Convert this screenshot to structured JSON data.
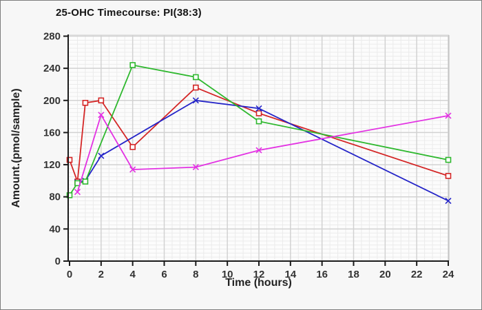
{
  "window": {
    "background": "#f7f7f7",
    "plot_background": "#fcfcfc",
    "border_color": "#7d7d7d"
  },
  "chart_data": {
    "type": "line",
    "title": "25-OHC Timecourse: PI(38:3)",
    "xlabel": "Time (hours)",
    "ylabel": "Amount.(pmol/sample)",
    "xlim": [
      0,
      24
    ],
    "ylim": [
      0,
      280
    ],
    "x_ticks": [
      0,
      2,
      4,
      6,
      8,
      10,
      12,
      14,
      16,
      18,
      20,
      22,
      24
    ],
    "y_ticks": [
      0,
      40,
      80,
      120,
      160,
      200,
      240,
      280
    ],
    "grid": {
      "enabled": true,
      "major_color": "#d2d2d2",
      "minor_color": "#ebebeb",
      "x_minor_step": 0.5,
      "y_minor_step": 5
    },
    "legend": "none",
    "axis_color": "#1a1a1a",
    "tick_label_color": "#333333",
    "series": [
      {
        "name": "series-red",
        "color": "#d42525",
        "marker": "square",
        "points": [
          [
            0,
            126
          ],
          [
            0.5,
            99
          ],
          [
            1,
            197
          ],
          [
            2,
            200
          ],
          [
            4,
            142
          ],
          [
            8,
            216
          ],
          [
            12,
            184
          ],
          [
            24,
            106
          ]
        ]
      },
      {
        "name": "series-blue",
        "color": "#2424c8",
        "marker": "x",
        "points": [
          [
            0.5,
            98
          ],
          [
            1,
            100
          ],
          [
            2,
            131
          ],
          [
            8,
            200
          ],
          [
            12,
            190
          ],
          [
            24,
            75
          ]
        ]
      },
      {
        "name": "series-green",
        "color": "#2eb82e",
        "marker": "square",
        "points": [
          [
            0,
            82
          ],
          [
            0.5,
            97
          ],
          [
            1,
            99
          ],
          [
            4,
            244
          ],
          [
            8,
            229
          ],
          [
            12,
            174
          ],
          [
            24,
            126
          ]
        ]
      },
      {
        "name": "series-magenta",
        "color": "#e331e3",
        "marker": "x",
        "points": [
          [
            0.5,
            86
          ],
          [
            2,
            182
          ],
          [
            4,
            114
          ],
          [
            8,
            117
          ],
          [
            12,
            138
          ],
          [
            24,
            181
          ]
        ]
      }
    ]
  }
}
